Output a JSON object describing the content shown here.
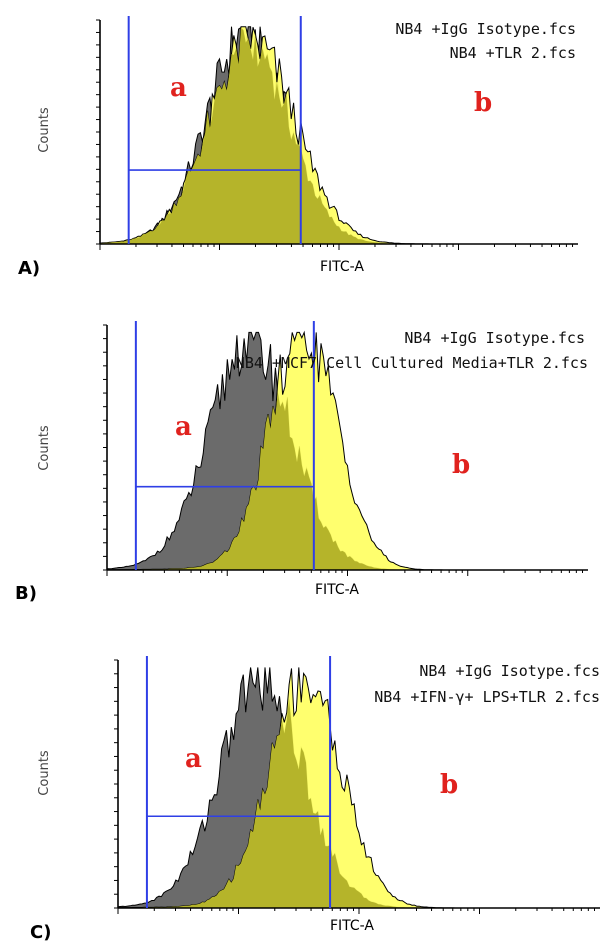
{
  "figure": {
    "panels": [
      {
        "id": "A",
        "panel_label": "A)",
        "xlabel": "FITC-A",
        "ylabel": "Counts",
        "legend": [
          "NB4 +IgG Isotype.fcs",
          "NB4 +TLR 2.fcs"
        ],
        "regions": [
          "a",
          "b"
        ]
      },
      {
        "id": "B",
        "panel_label": "B)",
        "xlabel": "FITC-A",
        "ylabel": "Counts",
        "legend": [
          "NB4 +IgG Isotype.fcs",
          "NB4 +MCF7 Cell Cultured Media+TLR 2.fcs"
        ],
        "regions": [
          "a",
          "b"
        ]
      },
      {
        "id": "C",
        "panel_label": "C)",
        "xlabel": "FITC-A",
        "ylabel": "Counts",
        "legend": [
          "NB4 +IgG Isotype.fcs",
          "NB4 +IFN-γ+ LPS+TLR 2.fcs"
        ],
        "regions": [
          "a",
          "b"
        ]
      }
    ]
  },
  "colors": {
    "isotype_fill": "#6b6b6b",
    "treated_fill": "#ffff66",
    "overlap_fill": "#b5b42a",
    "gate": "#2f3fe6",
    "region_label": "#e0221e"
  },
  "chart_data": [
    {
      "type": "area",
      "title": "",
      "xlabel": "FITC-A",
      "ylabel": "Counts",
      "xscale": "log",
      "series": [
        {
          "name": "NB4 +IgG Isotype.fcs",
          "peak_fraction": 0.31,
          "width": 0.085,
          "height": 0.95
        },
        {
          "name": "NB4 +TLR 2.fcs",
          "peak_fraction": 0.32,
          "width": 0.09,
          "height": 0.92
        }
      ],
      "gates": [
        0.06,
        0.42
      ],
      "gate_h_level": 0.33
    },
    {
      "type": "area",
      "title": "",
      "xlabel": "FITC-A",
      "ylabel": "Counts",
      "xscale": "log",
      "series": [
        {
          "name": "NB4 +IgG Isotype.fcs",
          "peak_fraction": 0.3,
          "width": 0.085,
          "height": 0.95
        },
        {
          "name": "NB4 +MCF7 Cell Cultured Media+TLR 2.fcs",
          "peak_fraction": 0.41,
          "width": 0.07,
          "height": 1.0
        }
      ],
      "gates": [
        0.06,
        0.43
      ],
      "gate_h_level": 0.34
    },
    {
      "type": "area",
      "title": "",
      "xlabel": "FITC-A",
      "ylabel": "Counts",
      "xscale": "log",
      "series": [
        {
          "name": "NB4 +IgG Isotype.fcs",
          "peak_fraction": 0.3,
          "width": 0.085,
          "height": 0.95
        },
        {
          "name": "NB4 +IFN-γ+ LPS+TLR 2.fcs",
          "peak_fraction": 0.39,
          "width": 0.075,
          "height": 0.94
        }
      ],
      "gates": [
        0.06,
        0.44
      ],
      "gate_h_level": 0.37
    }
  ]
}
